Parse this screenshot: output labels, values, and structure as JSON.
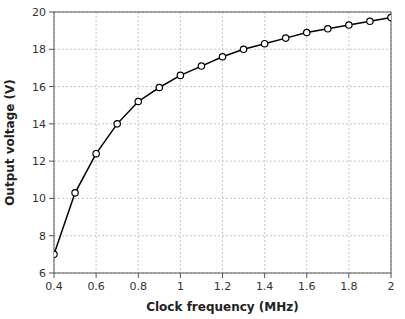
{
  "chart_data": {
    "type": "line",
    "x": [
      0.4,
      0.5,
      0.6,
      0.7,
      0.8,
      0.9,
      1.0,
      1.1,
      1.2,
      1.3,
      1.4,
      1.5,
      1.6,
      1.7,
      1.8,
      1.9,
      2.0
    ],
    "values": [
      7.0,
      10.3,
      12.4,
      14.0,
      15.2,
      15.95,
      16.6,
      17.1,
      17.6,
      18.0,
      18.3,
      18.6,
      18.9,
      19.1,
      19.3,
      19.5,
      19.7
    ],
    "xlabel": "Clock frequency (MHz)",
    "ylabel": "Output voltage (V)",
    "xlim": [
      0.4,
      2.0
    ],
    "ylim": [
      6,
      20
    ],
    "xticks": [
      0.4,
      0.6,
      0.8,
      1,
      1.2,
      1.4,
      1.6,
      1.8,
      2
    ],
    "yticks": [
      6,
      8,
      10,
      12,
      14,
      16,
      18,
      20
    ],
    "color": "#000000",
    "marker": "circle",
    "grid": true
  }
}
